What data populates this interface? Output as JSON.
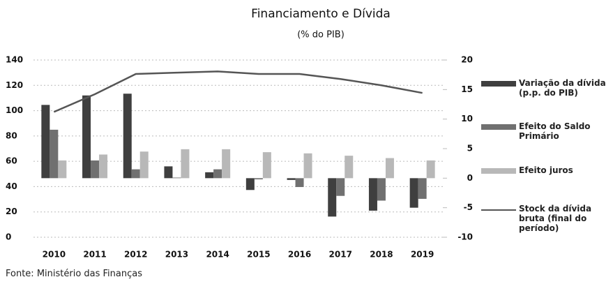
{
  "chart_data": {
    "type": "bar",
    "title": "Financiamento e Dívida",
    "subtitle": "(% do PIB)",
    "note": "Fonte: Ministério das Finanças",
    "categories": [
      "2010",
      "2011",
      "2012",
      "2013",
      "2014",
      "2015",
      "2016",
      "2017",
      "2018",
      "2019"
    ],
    "series": [
      {
        "name": "Variação da dívida (p.p. do PIB)",
        "color": "#3f3f3f",
        "axis": "y2",
        "type": "bar",
        "values": [
          12.4,
          14,
          14.3,
          2,
          1,
          -2,
          -0.3,
          -6.5,
          -5.5,
          -5
        ]
      },
      {
        "name": "Efeito do Saldo Primário",
        "color": "#707070",
        "axis": "y2",
        "type": "bar",
        "values": [
          8.2,
          3,
          1.5,
          0.1,
          1.5,
          -0.2,
          -1.5,
          -3,
          -3.8,
          -3.5
        ]
      },
      {
        "name": "Efeito juros",
        "color": "#b8b8b8",
        "axis": "y2",
        "type": "bar",
        "values": [
          3,
          4,
          4.5,
          4.9,
          4.9,
          4.4,
          4.2,
          3.8,
          3.4,
          3
        ]
      },
      {
        "name": "Stock da dívida bruta (final do período)",
        "color": "#555555",
        "axis": "y",
        "type": "line",
        "values": [
          99,
          113,
          129,
          130,
          131,
          129,
          129,
          125,
          120,
          114
        ]
      }
    ],
    "ylim": [
      0,
      140
    ],
    "yticks": [
      0,
      20,
      40,
      60,
      80,
      100,
      120,
      140
    ],
    "y2lim": [
      -10,
      20
    ],
    "y2ticks": [
      -10,
      -5,
      0,
      5,
      10,
      15,
      20
    ],
    "grid": true,
    "legend": "right"
  }
}
